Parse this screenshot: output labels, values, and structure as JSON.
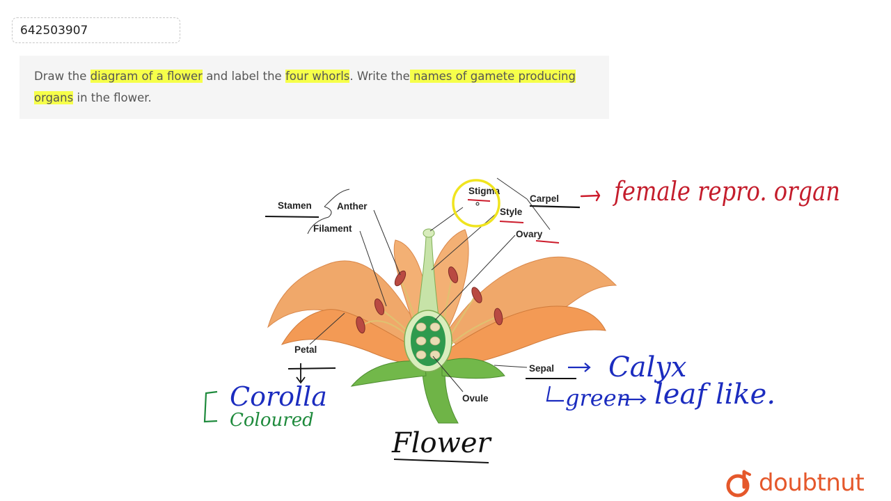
{
  "question_id": "642503907",
  "question": {
    "segments": [
      {
        "text": "Draw the ",
        "highlight": false
      },
      {
        "text": "diagram of a flower",
        "highlight": true
      },
      {
        "text": " and label the ",
        "highlight": false
      },
      {
        "text": "four whorls",
        "highlight": true
      },
      {
        "text": ". Write the",
        "highlight": false
      },
      {
        "text": " names of gamete producing organs",
        "highlight": true
      },
      {
        "text": " in the flower.",
        "highlight": false
      }
    ]
  },
  "diagram": {
    "labels": {
      "stamen": "Stamen",
      "anther": "Anther",
      "filament": "Filament",
      "stigma": "Stigma",
      "style": "Style",
      "carpel": "Carpel",
      "ovary": "Ovary",
      "petal": "Petal",
      "sepal": "Sepal",
      "ovule": "Ovule"
    },
    "annotations": {
      "carpel_note": "female repro. organ",
      "sepal_note": "Calyx",
      "sepal_note2": "green",
      "sepal_note3": "leaf like.",
      "petal_note": "Corolla",
      "petal_note2": "Coloured",
      "caption": "Flower"
    }
  },
  "branding": {
    "logo_text": "doubtnut",
    "logo_icon": "doubtnut-d-icon",
    "accent_color": "#e5582b",
    "highlight_color": "#f6ff4a"
  }
}
